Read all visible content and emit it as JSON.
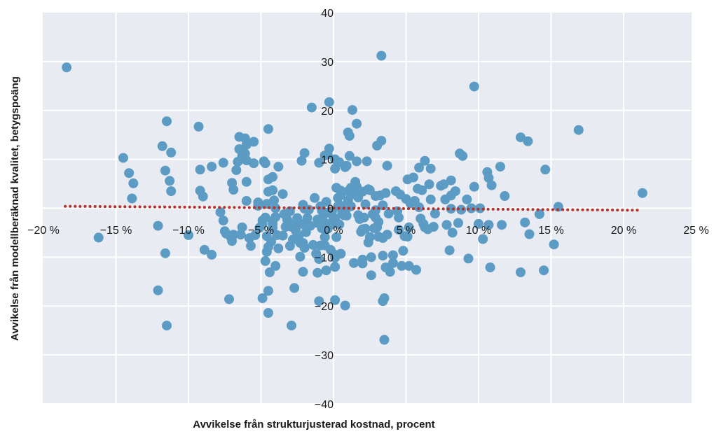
{
  "chart_data": {
    "type": "scatter",
    "xlabel": "Avvikelse från strukturjusterad kostnad, procent",
    "ylabel": "Avvikelse från modellberäknad kvalitet, betygspoäng",
    "xlim": [
      -20,
      25
    ],
    "ylim": [
      -40,
      40
    ],
    "x_ticks": [
      -20,
      -15,
      -10,
      -5,
      0,
      5,
      10,
      15,
      20,
      25
    ],
    "y_ticks": [
      -40,
      -30,
      -20,
      -10,
      0,
      10,
      20,
      30,
      40
    ],
    "x_tick_labels": [
      "−20 %",
      "−15 %",
      "−10 %",
      "−5 %",
      "0 %",
      "5 %",
      "10 %",
      "15 %",
      "20 %",
      "25 %"
    ],
    "y_tick_labels": [
      "−40",
      "−30",
      "−20",
      "−10",
      "0",
      "10",
      "20",
      "30",
      "40"
    ],
    "grid": true,
    "colors": {
      "background": "#e8ecf2",
      "grid": "#ffffff",
      "points": "#5b9bc4",
      "trend": "#b5302a"
    },
    "trend_line": {
      "style": "dotted",
      "x": [
        -18.5,
        21
      ],
      "y": [
        0.4,
        -0.4
      ]
    },
    "series": [
      {
        "points": [
          [
            -18.4,
            28.8
          ],
          [
            -16.2,
            -6.0
          ],
          [
            -14.5,
            10.3
          ],
          [
            -14.1,
            7.2
          ],
          [
            -13.8,
            5.1
          ],
          [
            -13.9,
            2.0
          ],
          [
            -12.1,
            -3.6
          ],
          [
            -12.1,
            -16.8
          ],
          [
            -11.8,
            12.7
          ],
          [
            -11.6,
            -9.2
          ],
          [
            -11.5,
            -24.0
          ],
          [
            -11.6,
            7.7
          ],
          [
            -11.5,
            17.8
          ],
          [
            -11.3,
            5.6
          ],
          [
            -11.2,
            11.4
          ],
          [
            -11.2,
            3.5
          ],
          [
            -10.0,
            -5.5
          ],
          [
            -9.3,
            16.7
          ],
          [
            -9.2,
            3.6
          ],
          [
            -9.2,
            7.9
          ],
          [
            -9.0,
            2.4
          ],
          [
            -8.9,
            -8.5
          ],
          [
            -8.4,
            8.5
          ],
          [
            -8.4,
            -9.5
          ],
          [
            -7.8,
            -0.8
          ],
          [
            -7.6,
            -2.5
          ],
          [
            -7.6,
            9.3
          ],
          [
            -7.5,
            -4.7
          ],
          [
            -7.4,
            -5.2
          ],
          [
            -7.2,
            -18.6
          ],
          [
            -7.0,
            -6.7
          ],
          [
            -7.1,
            -5.8
          ],
          [
            -7.0,
            5.2
          ],
          [
            -6.9,
            3.8
          ],
          [
            -6.9,
            -5.4
          ],
          [
            -6.6,
            9.5
          ],
          [
            -6.5,
            14.6
          ],
          [
            -6.5,
            12.1
          ],
          [
            -6.7,
            7.8
          ],
          [
            -6.4,
            -5.4
          ],
          [
            -6.3,
            -3.9
          ],
          [
            -6.3,
            10.7
          ],
          [
            -6.1,
            11.2
          ],
          [
            -6.1,
            14.3
          ],
          [
            -6.0,
            5.4
          ],
          [
            -6.0,
            13.0
          ],
          [
            -6.0,
            1.5
          ],
          [
            -6.0,
            9.8
          ],
          [
            -5.8,
            -6.1
          ],
          [
            -5.7,
            -7.7
          ],
          [
            -5.5,
            9.2
          ],
          [
            -5.4,
            -5.5
          ],
          [
            -5.5,
            13.6
          ],
          [
            -5.2,
            1.2
          ],
          [
            -5.2,
            0.5
          ],
          [
            -5.1,
            -4.0
          ],
          [
            -4.9,
            -3.2
          ],
          [
            -4.9,
            -18.4
          ],
          [
            -4.9,
            -2.5
          ],
          [
            -4.8,
            9.6
          ],
          [
            -4.7,
            9.2
          ],
          [
            -4.7,
            -1.9
          ],
          [
            -4.7,
            -10.8
          ],
          [
            -4.6,
            -8.9
          ],
          [
            -4.6,
            0.9
          ],
          [
            -4.6,
            -5.7
          ],
          [
            -4.5,
            -7.9
          ],
          [
            -4.5,
            -21.4
          ],
          [
            -4.5,
            -16.9
          ],
          [
            -4.5,
            16.2
          ],
          [
            -4.5,
            5.9
          ],
          [
            -4.5,
            3.4
          ],
          [
            -4.4,
            -13.1
          ],
          [
            -4.3,
            -6.8
          ],
          [
            -4.2,
            -3.2
          ],
          [
            -4.2,
            -4.0
          ],
          [
            -4.2,
            -2.6
          ],
          [
            -4.2,
            3.7
          ],
          [
            -4.2,
            6.4
          ],
          [
            -4.1,
            1.6
          ],
          [
            -4.0,
            -1.8
          ],
          [
            -4.0,
            0.0
          ],
          [
            -4.0,
            -11.8
          ],
          [
            -3.9,
            -5.5
          ],
          [
            -3.8,
            -8.2
          ],
          [
            -3.8,
            8.5
          ],
          [
            -3.5,
            -5.6
          ],
          [
            -3.5,
            2.9
          ],
          [
            -3.4,
            -1.2
          ],
          [
            -3.3,
            -3.8
          ],
          [
            -3.2,
            -2.3
          ],
          [
            -3.0,
            -0.6
          ],
          [
            -3.0,
            -7.7
          ],
          [
            -2.9,
            -24.0
          ],
          [
            -2.9,
            -3.8
          ],
          [
            -2.8,
            -6.4
          ],
          [
            -2.7,
            -16.3
          ],
          [
            -2.6,
            -4.6
          ],
          [
            -2.6,
            -2.8
          ],
          [
            -2.5,
            -2.0
          ],
          [
            -2.4,
            -5.7
          ],
          [
            -2.3,
            -7.1
          ],
          [
            -2.3,
            -9.9
          ],
          [
            -2.2,
            -3.2
          ],
          [
            -2.2,
            9.7
          ],
          [
            -2.1,
            -13.0
          ],
          [
            -2.1,
            0.7
          ],
          [
            -2.1,
            -7.1
          ],
          [
            -2.0,
            -8.1
          ],
          [
            -2.0,
            -0.1
          ],
          [
            -2.0,
            11.3
          ],
          [
            -1.9,
            -4.9
          ],
          [
            -1.8,
            -2.0
          ],
          [
            -1.7,
            -0.3
          ],
          [
            -1.6,
            -3.6
          ],
          [
            -1.5,
            20.6
          ],
          [
            -1.4,
            -7.5
          ],
          [
            -1.3,
            2.1
          ],
          [
            -1.2,
            -9.3
          ],
          [
            -1.1,
            -2.3
          ],
          [
            -1.1,
            -13.2
          ],
          [
            -1.1,
            -3.0
          ],
          [
            -1.0,
            9.3
          ],
          [
            -1.0,
            -19.0
          ],
          [
            -1.0,
            -10.4
          ],
          [
            -0.9,
            -7.6
          ],
          [
            -0.9,
            0.4
          ],
          [
            -0.8,
            -4.1
          ],
          [
            -0.8,
            -0.5
          ],
          [
            -0.7,
            -1.4
          ],
          [
            -0.6,
            10.8
          ],
          [
            -0.6,
            -7.6
          ],
          [
            -0.6,
            -5.9
          ],
          [
            -0.5,
            -3.1
          ],
          [
            -0.5,
            1.3
          ],
          [
            -0.5,
            -12.7
          ],
          [
            -0.4,
            -0.9
          ],
          [
            -0.4,
            -4.2
          ],
          [
            -0.4,
            11.0
          ],
          [
            -0.3,
            21.7
          ],
          [
            -0.3,
            12.2
          ],
          [
            -0.2,
            -8.5
          ],
          [
            -0.1,
            -3.3
          ],
          [
            -0.1,
            -0.6
          ],
          [
            0.0,
            -1.9
          ],
          [
            0.1,
            -12.0
          ],
          [
            0.1,
            -9.5
          ],
          [
            0.1,
            -18.8
          ],
          [
            0.1,
            -10.1
          ],
          [
            0.1,
            -2.1
          ],
          [
            0.1,
            8.1
          ],
          [
            0.1,
            10.0
          ],
          [
            0.2,
            4.2
          ],
          [
            0.2,
            -5.9
          ],
          [
            0.3,
            0.4
          ],
          [
            0.3,
            2.1
          ],
          [
            0.4,
            9.4
          ],
          [
            0.4,
            -3.3
          ],
          [
            0.5,
            3.6
          ],
          [
            0.5,
            0.5
          ],
          [
            0.5,
            -9.3
          ],
          [
            0.5,
            2.7
          ],
          [
            0.6,
            -0.9
          ],
          [
            0.7,
            -1.4
          ],
          [
            0.7,
            -0.3
          ],
          [
            0.8,
            -0.7
          ],
          [
            0.8,
            -19.9
          ],
          [
            0.8,
            8.4
          ],
          [
            0.9,
            8.7
          ],
          [
            0.9,
            -1.5
          ],
          [
            1.0,
            15.5
          ],
          [
            1.0,
            3.5
          ],
          [
            1.0,
            1.5
          ],
          [
            1.1,
            10.7
          ],
          [
            1.1,
            14.8
          ],
          [
            1.2,
            2.7
          ],
          [
            1.2,
            4.2
          ],
          [
            1.2,
            0.4
          ],
          [
            1.3,
            20.1
          ],
          [
            1.3,
            3.7
          ],
          [
            1.4,
            -11.2
          ],
          [
            1.5,
            5.4
          ],
          [
            1.6,
            17.3
          ],
          [
            1.6,
            9.6
          ],
          [
            1.6,
            4.4
          ],
          [
            1.7,
            3.1
          ],
          [
            1.7,
            2.2
          ],
          [
            1.7,
            -1.4
          ],
          [
            1.8,
            -2.2
          ],
          [
            1.9,
            -4.8
          ],
          [
            2.0,
            3.4
          ],
          [
            2.0,
            -11.3
          ],
          [
            2.0,
            -10.5
          ],
          [
            2.0,
            -4.3
          ],
          [
            2.1,
            -1.9
          ],
          [
            2.2,
            -4.2
          ],
          [
            2.2,
            0.8
          ],
          [
            2.3,
            9.6
          ],
          [
            2.4,
            3.9
          ],
          [
            2.4,
            -7.0
          ],
          [
            2.5,
            3.7
          ],
          [
            2.5,
            -5.9
          ],
          [
            2.6,
            -10.0
          ],
          [
            2.6,
            -13.7
          ],
          [
            2.7,
            -1.2
          ],
          [
            2.8,
            -4.1
          ],
          [
            2.9,
            -0.4
          ],
          [
            2.9,
            2.5
          ],
          [
            2.9,
            -1.9
          ],
          [
            3.0,
            12.8
          ],
          [
            3.0,
            -3.9
          ],
          [
            3.1,
            -5.8
          ],
          [
            3.1,
            -2.8
          ],
          [
            3.2,
            2.6
          ],
          [
            3.3,
            31.2
          ],
          [
            3.3,
            13.8
          ],
          [
            3.4,
            -9.7
          ],
          [
            3.4,
            -6.1
          ],
          [
            3.4,
            0.6
          ],
          [
            3.4,
            -19.0
          ],
          [
            3.5,
            -26.9
          ],
          [
            3.5,
            -18.4
          ],
          [
            3.6,
            -12.1
          ],
          [
            3.6,
            3.1
          ],
          [
            3.7,
            8.7
          ],
          [
            3.7,
            -5.4
          ],
          [
            3.8,
            -1.1
          ],
          [
            3.9,
            -13.0
          ],
          [
            4.1,
            -11.2
          ],
          [
            4.1,
            -9.6
          ],
          [
            4.3,
            3.5
          ],
          [
            4.4,
            -0.6
          ],
          [
            4.5,
            -4.4
          ],
          [
            4.5,
            -1.9
          ],
          [
            4.6,
            2.8
          ],
          [
            4.7,
            -11.8
          ],
          [
            4.8,
            -8.7
          ],
          [
            4.9,
            -5.7
          ],
          [
            5.0,
            1.9
          ],
          [
            5.1,
            5.9
          ],
          [
            5.1,
            -5.8
          ],
          [
            5.2,
            -11.8
          ],
          [
            5.2,
            -3.9
          ],
          [
            5.3,
            1.0
          ],
          [
            5.5,
            6.3
          ],
          [
            5.6,
            1.5
          ],
          [
            5.7,
            -12.6
          ],
          [
            5.8,
            4.0
          ],
          [
            5.9,
            8.3
          ],
          [
            5.9,
            0.2
          ],
          [
            6.0,
            -2.1
          ],
          [
            6.1,
            3.7
          ],
          [
            6.2,
            -3.2
          ],
          [
            6.3,
            9.7
          ],
          [
            6.3,
            -3.9
          ],
          [
            6.5,
            -4.3
          ],
          [
            6.6,
            4.9
          ],
          [
            6.7,
            1.8
          ],
          [
            6.7,
            8.1
          ],
          [
            6.9,
            -3.8
          ],
          [
            7.0,
            -1.1
          ],
          [
            7.4,
            4.6
          ],
          [
            7.6,
            4.9
          ],
          [
            7.7,
            1.8
          ],
          [
            7.8,
            -3.4
          ],
          [
            8.0,
            -8.6
          ],
          [
            8.1,
            -0.1
          ],
          [
            8.1,
            2.6
          ],
          [
            8.1,
            5.7
          ],
          [
            8.2,
            -5.0
          ],
          [
            8.4,
            3.5
          ],
          [
            8.6,
            -3.0
          ],
          [
            8.7,
            11.2
          ],
          [
            8.8,
            -0.3
          ],
          [
            8.9,
            10.7
          ],
          [
            9.2,
            1.8
          ],
          [
            9.3,
            -10.3
          ],
          [
            9.5,
            0.0
          ],
          [
            9.7,
            24.9
          ],
          [
            9.7,
            4.4
          ],
          [
            10.0,
            -3.2
          ],
          [
            10.1,
            0.0
          ],
          [
            10.3,
            -6.3
          ],
          [
            10.6,
            7.4
          ],
          [
            10.7,
            6.2
          ],
          [
            10.7,
            -3.4
          ],
          [
            10.8,
            -12.1
          ],
          [
            10.9,
            4.7
          ],
          [
            11.5,
            8.5
          ],
          [
            11.6,
            -3.4
          ],
          [
            11.8,
            2.5
          ],
          [
            12.9,
            -13.1
          ],
          [
            12.9,
            14.5
          ],
          [
            13.2,
            -2.9
          ],
          [
            13.4,
            13.7
          ],
          [
            13.5,
            -5.3
          ],
          [
            14.2,
            -1.2
          ],
          [
            14.5,
            -12.7
          ],
          [
            14.6,
            7.9
          ],
          [
            15.2,
            -7.4
          ],
          [
            15.5,
            0.3
          ],
          [
            16.9,
            16.0
          ],
          [
            21.3,
            3.1
          ]
        ]
      }
    ]
  }
}
